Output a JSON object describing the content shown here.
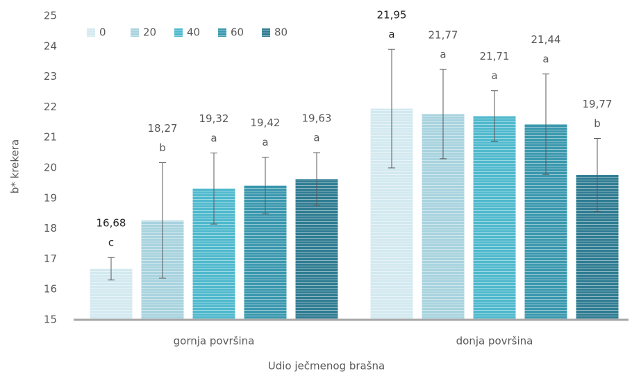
{
  "chart_data": {
    "type": "bar",
    "x_label": "Udio ječmenog brašna",
    "y_label": "b* krekera",
    "categories": [
      "gornja površina",
      "donja površina"
    ],
    "series": [
      {
        "name": "0",
        "color": "#d3e9f0",
        "values": [
          16.68,
          21.95
        ],
        "value_labels": [
          "16,68",
          "21,95"
        ],
        "letters": [
          "c",
          "a"
        ],
        "errors": [
          0.37,
          1.95
        ]
      },
      {
        "name": "20",
        "color": "#a8d3df",
        "values": [
          18.27,
          21.77
        ],
        "value_labels": [
          "18,27",
          "21,77"
        ],
        "letters": [
          "b",
          "a"
        ],
        "errors": [
          1.9,
          1.47
        ]
      },
      {
        "name": "40",
        "color": "#4fb9cd",
        "values": [
          19.32,
          21.71
        ],
        "value_labels": [
          "19,32",
          "21,71"
        ],
        "letters": [
          "a",
          "a"
        ],
        "errors": [
          1.17,
          0.83
        ]
      },
      {
        "name": "60",
        "color": "#3a98ae",
        "values": [
          19.42,
          21.44
        ],
        "value_labels": [
          "19,42",
          "21,44"
        ],
        "letters": [
          "a",
          "a"
        ],
        "errors": [
          0.93,
          1.65
        ]
      },
      {
        "name": "80",
        "color": "#2f7c92",
        "values": [
          19.63,
          19.77
        ],
        "value_labels": [
          "19,63",
          "19,77"
        ],
        "letters": [
          "a",
          "b"
        ],
        "errors": [
          0.87,
          1.2
        ]
      }
    ],
    "ylim": [
      15,
      25
    ],
    "yticks": [
      15,
      16,
      17,
      18,
      19,
      20,
      21,
      22,
      23,
      24,
      25
    ],
    "legend": "top-left",
    "grid": false
  }
}
